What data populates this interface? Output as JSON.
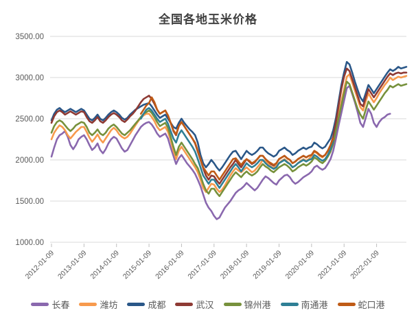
{
  "chart_data": {
    "type": "line",
    "title": "全国各地玉米价格",
    "legend_position": "bottom",
    "grid": true,
    "y_axis": {
      "min": 1000,
      "max": 3500,
      "tick_values": [
        3500,
        3000,
        2500,
        2000,
        1500,
        1000
      ],
      "tick_format_decimals": 2
    },
    "x_axis": {
      "start_month": "2012-01",
      "total_months": 132,
      "months_per_tick": 12,
      "tick_labels": [
        "2012-01-09",
        "2013-01-09",
        "2014-01-09",
        "2015-01-09",
        "2016-01-09",
        "2017-01-09",
        "2018-01-09",
        "2019-01-09",
        "2020-01-09",
        "2021-01-09",
        "2022-01-09"
      ]
    },
    "series": [
      {
        "name": "长春",
        "color": "#8a68ae",
        "offset_months": 0,
        "values": [
          2040,
          2150,
          2250,
          2300,
          2320,
          2350,
          2280,
          2180,
          2130,
          2180,
          2250,
          2280,
          2300,
          2250,
          2180,
          2120,
          2150,
          2200,
          2120,
          2080,
          2130,
          2200,
          2250,
          2280,
          2260,
          2200,
          2140,
          2100,
          2120,
          2180,
          2240,
          2300,
          2350,
          2400,
          2430,
          2450,
          2460,
          2430,
          2380,
          2320,
          2280,
          2300,
          2320,
          2260,
          2150,
          2050,
          1950,
          2020,
          2060,
          2010,
          1960,
          1920,
          1880,
          1830,
          1760,
          1680,
          1580,
          1480,
          1420,
          1380,
          1320,
          1280,
          1300,
          1360,
          1420,
          1460,
          1500,
          1550,
          1600,
          1630,
          1650,
          1680,
          1720,
          1690,
          1660,
          1630,
          1660,
          1710,
          1760,
          1800,
          1780,
          1750,
          1720,
          1700,
          1750,
          1780,
          1810,
          1820,
          1790,
          1740,
          1710,
          1730,
          1760,
          1790,
          1810,
          1830,
          1860,
          1910,
          1930,
          1900,
          1880,
          1900,
          1950,
          2010,
          2110,
          2260,
          2420,
          2570,
          2720,
          2870,
          2900,
          2800,
          2700,
          2580,
          2450,
          2400,
          2510,
          2620,
          2560,
          2450,
          2400,
          2460,
          2500,
          2520,
          2550,
          2560
        ]
      },
      {
        "name": "潍坊",
        "color": "#f79a4d",
        "offset_months": 0,
        "values": [
          2250,
          2330,
          2380,
          2420,
          2400,
          2360,
          2300,
          2260,
          2300,
          2340,
          2370,
          2400,
          2400,
          2340,
          2270,
          2220,
          2260,
          2310,
          2250,
          2210,
          2260,
          2310,
          2360,
          2390,
          2360,
          2310,
          2280,
          2260,
          2280,
          2320,
          2370,
          2420,
          2470,
          2510,
          2540,
          2560,
          2560,
          2520,
          2470,
          2400,
          2360,
          2380,
          2400,
          2340,
          2240,
          2110,
          2010,
          2110,
          2160,
          2110,
          2060,
          2010,
          1960,
          1910,
          1850,
          1760,
          1660,
          1610,
          1660,
          1710,
          1700,
          1650,
          1610,
          1640,
          1690,
          1750,
          1810,
          1860,
          1900,
          1870,
          1850,
          1880,
          1910,
          1880,
          1850,
          1870,
          1910,
          1950,
          2000,
          1980,
          1950,
          1920,
          1900,
          1930,
          1960,
          1990,
          2010,
          1980,
          1950,
          1910,
          1930,
          1960,
          1990,
          2010,
          1990,
          2010,
          2050,
          2100,
          2080,
          2050,
          2030,
          2060,
          2110,
          2160,
          2260,
          2410,
          2560,
          2710,
          2860,
          3010,
          3040,
          2940,
          2840,
          2740,
          2640,
          2600,
          2710,
          2810,
          2750,
          2700,
          2750,
          2810,
          2860,
          2910,
          2950,
          3000,
          2970,
          2990,
          3010,
          3000,
          3010,
          3020
        ]
      },
      {
        "name": "成都",
        "color": "#2a5788",
        "offset_months": 0,
        "values": [
          2480,
          2560,
          2610,
          2630,
          2600,
          2580,
          2600,
          2620,
          2600,
          2580,
          2600,
          2620,
          2600,
          2550,
          2500,
          2480,
          2510,
          2550,
          2500,
          2480,
          2510,
          2550,
          2580,
          2600,
          2580,
          2550,
          2510,
          2490,
          2510,
          2550,
          2580,
          2610,
          2630,
          2650,
          2670,
          2680,
          2690,
          2650,
          2600,
          2550,
          2510,
          2530,
          2550,
          2500,
          2450,
          2400,
          2380,
          2450,
          2500,
          2450,
          2410,
          2370,
          2340,
          2300,
          2210,
          2060,
          1960,
          1910,
          1950,
          2000,
          1960,
          1910,
          1870,
          1910,
          1960,
          2010,
          2060,
          2100,
          2110,
          2060,
          2010,
          2060,
          2110,
          2080,
          2060,
          2080,
          2110,
          2150,
          2150,
          2110,
          2080,
          2060,
          2040,
          2060,
          2110,
          2130,
          2150,
          2120,
          2100,
          2060,
          2080,
          2110,
          2130,
          2150,
          2130,
          2150,
          2160,
          2210,
          2190,
          2160,
          2140,
          2160,
          2210,
          2260,
          2360,
          2510,
          2710,
          2910,
          3060,
          3190,
          3160,
          3060,
          2950,
          2850,
          2760,
          2710,
          2810,
          2910,
          2860,
          2810,
          2860,
          2910,
          2960,
          3010,
          3060,
          3100,
          3080,
          3100,
          3130,
          3110,
          3120,
          3130
        ]
      },
      {
        "name": "武汉",
        "color": "#8e3a34",
        "offset_months": 0,
        "values": [
          2450,
          2530,
          2580,
          2600,
          2580,
          2550,
          2570,
          2590,
          2570,
          2550,
          2570,
          2590,
          2580,
          2520,
          2470,
          2450,
          2480,
          2520,
          2470,
          2450,
          2480,
          2520,
          2550,
          2570,
          2550,
          2520,
          2480,
          2460,
          2490,
          2530,
          2560,
          2600,
          2650,
          2700,
          2740,
          2760,
          2780,
          2740,
          2680,
          2610,
          2560,
          2580,
          2600,
          2540,
          2450,
          2350,
          2300,
          2410,
          2460,
          2410,
          2360,
          2310,
          2260,
          2200,
          2100,
          2000,
          1900,
          1810,
          1760,
          1810,
          1800,
          1750,
          1710,
          1760,
          1810,
          1860,
          1910,
          1950,
          2000,
          1950,
          1910,
          1960,
          2010,
          1980,
          1950,
          1970,
          2010,
          2050,
          2050,
          2010,
          1980,
          1950,
          1930,
          1960,
          2010,
          2030,
          2050,
          2020,
          2000,
          1960,
          1980,
          2010,
          2030,
          2050,
          2030,
          2050,
          2060,
          2110,
          2090,
          2060,
          2040,
          2060,
          2110,
          2180,
          2280,
          2460,
          2660,
          2860,
          3010,
          3110,
          3080,
          2980,
          2880,
          2780,
          2680,
          2650,
          2760,
          2860,
          2810,
          2760,
          2810,
          2860,
          2910,
          2960,
          3010,
          3050,
          3030,
          3050,
          3060,
          3050,
          3060,
          3060
        ]
      },
      {
        "name": "锦州港",
        "color": "#77913c",
        "offset_months": 0,
        "values": [
          2330,
          2410,
          2460,
          2480,
          2460,
          2420,
          2380,
          2350,
          2380,
          2420,
          2440,
          2460,
          2450,
          2400,
          2330,
          2300,
          2330,
          2370,
          2320,
          2300,
          2330,
          2380,
          2410,
          2430,
          2400,
          2360,
          2320,
          2300,
          2330,
          2360,
          2400,
          2440,
          2480,
          2520,
          2560,
          2580,
          2600,
          2570,
          2520,
          2460,
          2410,
          2430,
          2450,
          2390,
          2280,
          2160,
          2060,
          2160,
          2210,
          2160,
          2110,
          2060,
          2010,
          1950,
          1900,
          1810,
          1710,
          1630,
          1590,
          1650,
          1650,
          1600,
          1560,
          1610,
          1660,
          1710,
          1760,
          1810,
          1850,
          1820,
          1790,
          1830,
          1860,
          1830,
          1810,
          1830,
          1860,
          1910,
          1950,
          1920,
          1900,
          1870,
          1850,
          1880,
          1910,
          1930,
          1950,
          1930,
          1900,
          1860,
          1880,
          1910,
          1930,
          1950,
          1930,
          1950,
          1980,
          2030,
          2010,
          1980,
          1960,
          1990,
          2040,
          2100,
          2200,
          2360,
          2510,
          2660,
          2810,
          2950,
          2920,
          2820,
          2720,
          2620,
          2550,
          2500,
          2610,
          2710,
          2660,
          2610,
          2660,
          2710,
          2760,
          2810,
          2850,
          2900,
          2880,
          2900,
          2920,
          2900,
          2910,
          2920
        ]
      },
      {
        "name": "南通港",
        "color": "#2e7f95",
        "offset_months": 33,
        "values": [
          2500,
          2560,
          2610,
          2630,
          2600,
          2550,
          2500,
          2460,
          2480,
          2500,
          2440,
          2350,
          2260,
          2210,
          2310,
          2360,
          2310,
          2260,
          2210,
          2160,
          2100,
          2010,
          1910,
          1810,
          1760,
          1710,
          1760,
          1760,
          1710,
          1660,
          1710,
          1760,
          1810,
          1860,
          1910,
          1950,
          1910,
          1860,
          1910,
          1960,
          1930,
          1910,
          1930,
          1960,
          2000,
          2000,
          1960,
          1930,
          1910,
          1890,
          1910,
          1960,
          1980,
          2000,
          1970,
          1950,
          1910,
          1930,
          1960,
          1980,
          2000,
          1980,
          2000,
          2010,
          2060,
          2040,
          2010,
          1990,
          2010,
          2060,
          2130,
          2230
        ]
      },
      {
        "name": "蛇口港",
        "color": "#bf5b16",
        "offset_months": 33,
        "values": [
          2560,
          2610,
          2660,
          2690,
          2760,
          2700,
          2610,
          2560,
          2580,
          2600,
          2540,
          2450,
          2360,
          2310,
          2410,
          2460,
          2410,
          2360,
          2310,
          2260,
          2210,
          2110,
          2010,
          1910,
          1860,
          1810,
          1860,
          1860,
          1810,
          1760,
          1810,
          1860,
          1910,
          1960,
          2010,
          2020,
          1980,
          1940,
          1980,
          2010,
          1990,
          1960,
          1980,
          2010,
          2050,
          2050,
          2010,
          1980,
          1960,
          1940,
          1960,
          2010,
          2030,
          2050,
          2020,
          2000,
          1960,
          1980,
          2010,
          2030,
          2050,
          2030,
          2050,
          2060,
          2110,
          2090,
          2060,
          2040,
          2060,
          2110,
          2180,
          2260
        ]
      }
    ]
  },
  "style": {
    "grid_color": "#d9d9d9",
    "tick_color": "#bfbfbf",
    "axis_text_color": "#595959",
    "title_color": "#404040",
    "background": "#ffffff"
  }
}
